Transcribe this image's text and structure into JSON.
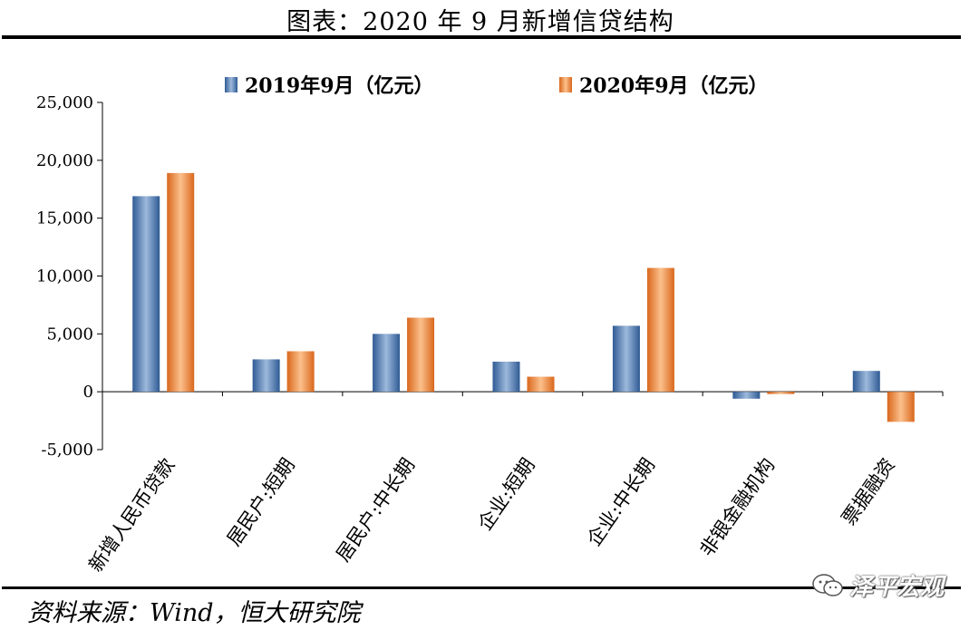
{
  "header": {
    "title": "图表：2020 年 9 月新增信贷结构"
  },
  "footer": {
    "source": "资料来源：Wind，恒大研究院",
    "watermark": "泽平宏观"
  },
  "colors": {
    "series1": "#4f81bd",
    "series2": "#f79646"
  },
  "chart_data": {
    "type": "bar",
    "categories": [
      "新增人民币贷款",
      "居民户:短期",
      "居民户:中长期",
      "企业:短期",
      "企业:中长期",
      "非银金融机构",
      "票据融资"
    ],
    "series": [
      {
        "name": "2019年9月（亿元）",
        "values": [
          16900,
          2800,
          5000,
          2600,
          5700,
          -600,
          1800
        ]
      },
      {
        "name": "2020年9月（亿元）",
        "values": [
          18900,
          3500,
          6400,
          1300,
          10700,
          -200,
          -2600
        ]
      }
    ],
    "yticks": [
      "25,000",
      "20,000",
      "15,000",
      "10,000",
      "5,000",
      "0",
      "-5,000"
    ],
    "ylim": [
      -5000,
      25000
    ],
    "grid": false,
    "legend": "top-center"
  }
}
